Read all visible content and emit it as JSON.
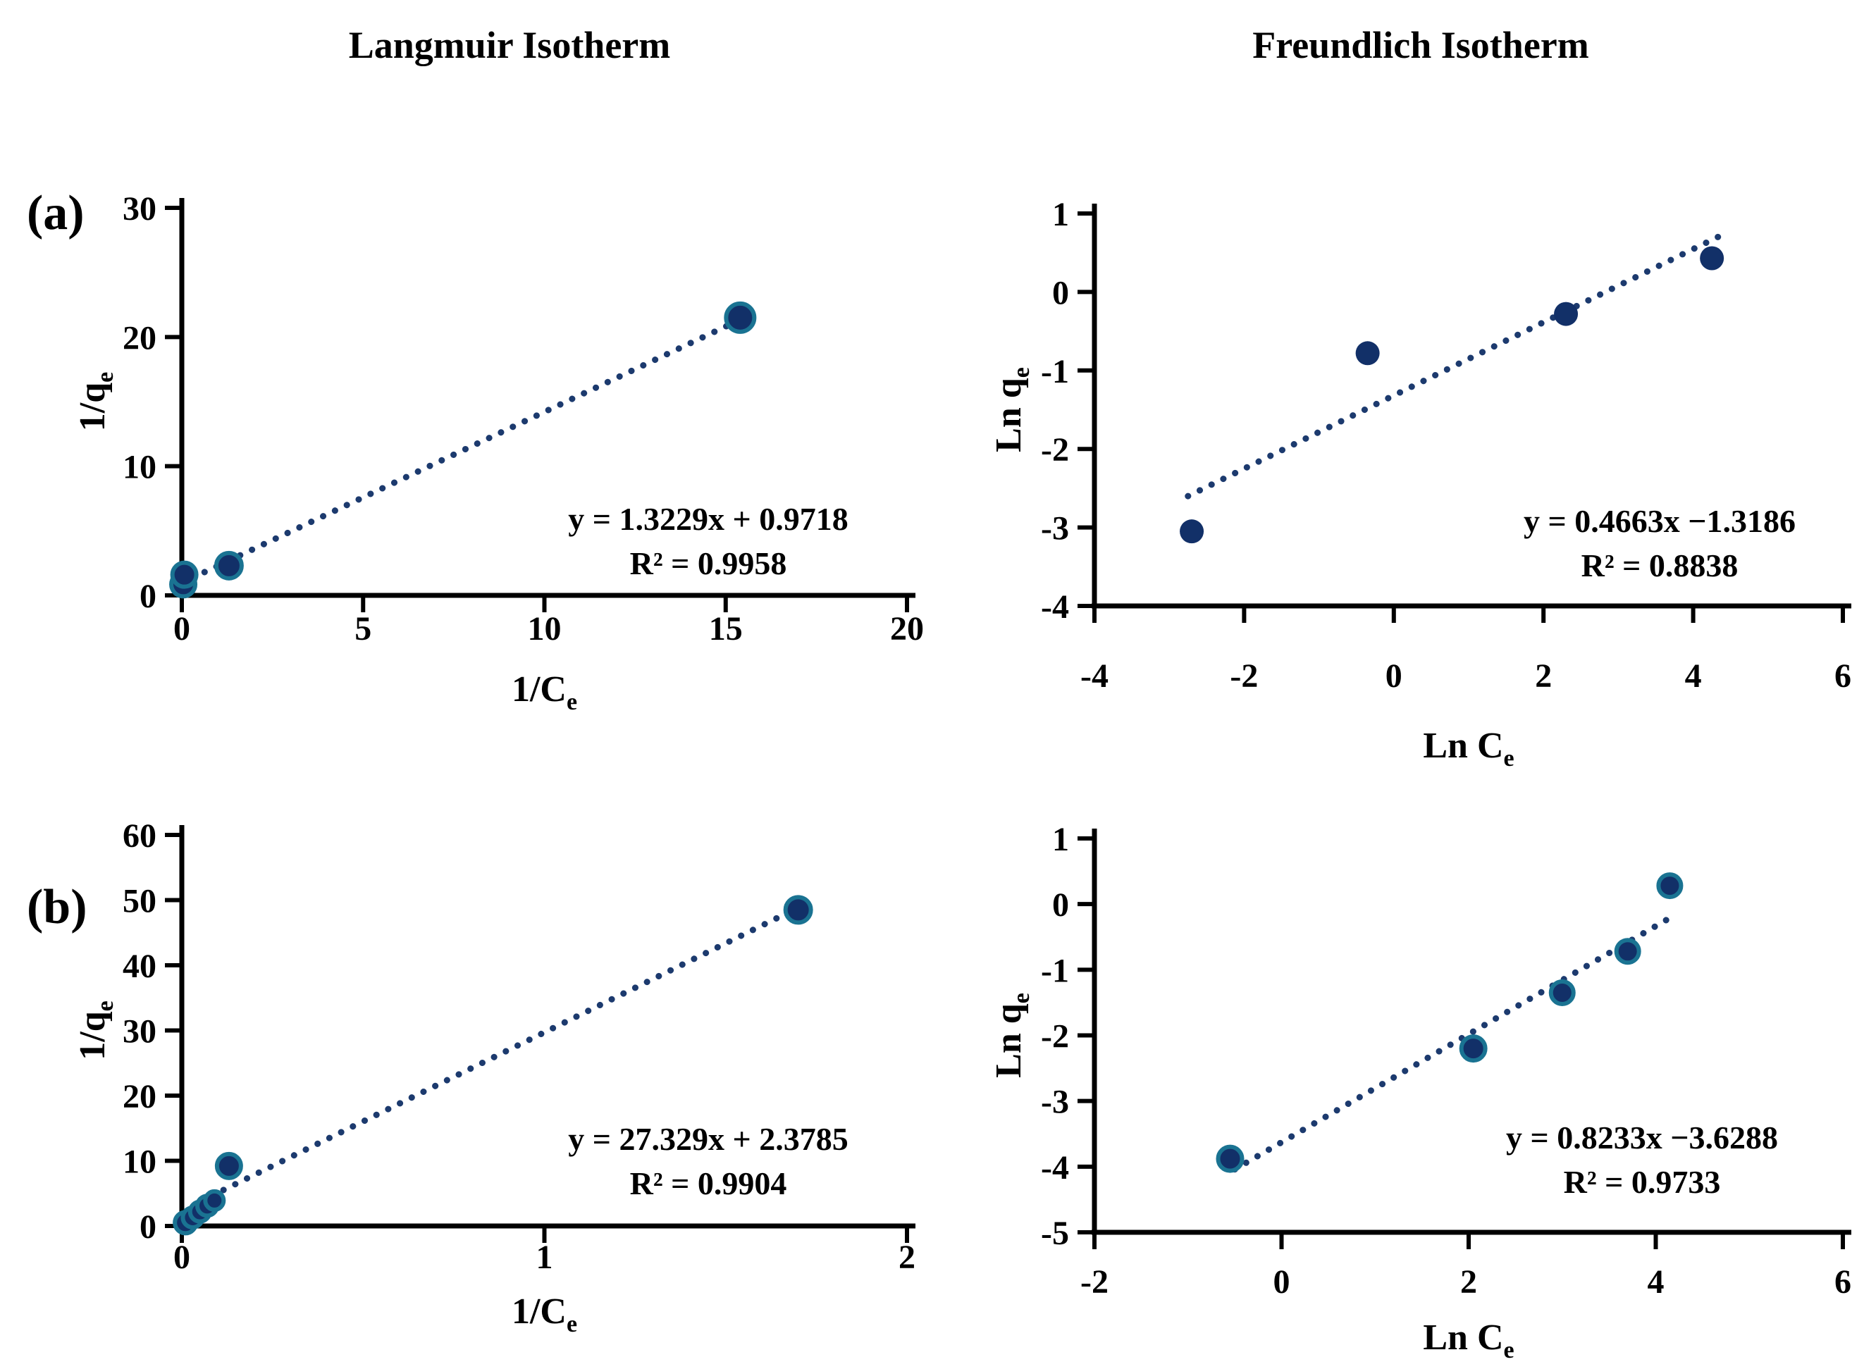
{
  "figure": {
    "column_titles": [
      "Langmuir Isotherm",
      "Freundlich Isotherm"
    ],
    "panel_labels": [
      "(a)",
      "(b)"
    ],
    "colors": {
      "axis": "#000000",
      "text": "#000000",
      "trendline": "#1c3a6e",
      "marker_fill": "#123068",
      "marker_ring": "#1a7392"
    }
  },
  "chart_data": [
    {
      "id": "a-langmuir",
      "type": "scatter",
      "panel": "(a)",
      "column": "Langmuir Isotherm",
      "xlabel_main": "1/C",
      "xlabel_sub": "e",
      "ylabel_main": "1/q",
      "ylabel_sub": "e",
      "xlim": [
        0,
        20
      ],
      "ylim": [
        0,
        30
      ],
      "xticks": [
        0,
        5,
        10,
        15,
        20
      ],
      "yticks": [
        0,
        10,
        20,
        30
      ],
      "points": [
        [
          0.04,
          0.85,
          17
        ],
        [
          0.07,
          1.6,
          17
        ],
        [
          1.3,
          2.3,
          18
        ],
        [
          15.4,
          21.5,
          20
        ]
      ],
      "trendline": {
        "slope": 1.3229,
        "intercept": 0.9718,
        "x_start": 0.3,
        "x_end": 15.5
      },
      "equation": "y = 1.3229x + 0.9718",
      "r_squared": "R² = 0.9958",
      "marker_ring": true,
      "legend": "none",
      "grid": false
    },
    {
      "id": "a-freundlich",
      "type": "scatter",
      "panel": "(a)",
      "column": "Freundlich Isotherm",
      "xlabel_main": "Ln C",
      "xlabel_sub": "e",
      "ylabel_main": "Ln q",
      "ylabel_sub": "e",
      "xlim": [
        -4,
        6
      ],
      "ylim": [
        -4,
        1
      ],
      "xticks": [
        -4,
        -2,
        0,
        2,
        4,
        6
      ],
      "yticks": [
        -4,
        -3,
        -2,
        -1,
        0,
        1
      ],
      "points": [
        [
          -2.7,
          -3.05,
          17
        ],
        [
          -0.35,
          -0.78,
          17
        ],
        [
          2.3,
          -0.28,
          17
        ],
        [
          4.25,
          0.43,
          17
        ]
      ],
      "trendline": {
        "slope": 0.4663,
        "intercept": -1.3186,
        "x_start": -2.75,
        "x_end": 4.47
      },
      "equation": "y = 0.4663x −1.3186",
      "r_squared": "R² = 0.8838",
      "marker_ring": false,
      "legend": "none",
      "grid": false
    },
    {
      "id": "b-langmuir",
      "type": "scatter",
      "panel": "(b)",
      "column": "Langmuir Isotherm",
      "xlabel_main": "1/C",
      "xlabel_sub": "e",
      "ylabel_main": "1/q",
      "ylabel_sub": "e",
      "xlim": [
        0,
        2
      ],
      "ylim": [
        0,
        60
      ],
      "xticks": [
        0,
        1,
        2
      ],
      "yticks": [
        0,
        10,
        20,
        30,
        40,
        50,
        60
      ],
      "points": [
        [
          0.01,
          0.5,
          15
        ],
        [
          0.03,
          1.3,
          14
        ],
        [
          0.05,
          2.2,
          14
        ],
        [
          0.07,
          3.1,
          14
        ],
        [
          0.09,
          3.9,
          13
        ],
        [
          0.13,
          9.2,
          17
        ],
        [
          1.7,
          48.5,
          18
        ]
      ],
      "trendline": {
        "slope": 27.329,
        "intercept": 2.3785,
        "x_start": 0.05,
        "x_end": 1.7
      },
      "equation": "y = 27.329x + 2.3785",
      "r_squared": "R² = 0.9904",
      "marker_ring": true,
      "legend": "none",
      "grid": false
    },
    {
      "id": "b-freundlich",
      "type": "scatter",
      "panel": "(b)",
      "column": "Freundlich Isotherm",
      "xlabel_main": "Ln C",
      "xlabel_sub": "e",
      "ylabel_main": "Ln q",
      "ylabel_sub": "e",
      "xlim": [
        -2,
        6
      ],
      "ylim": [
        -5,
        1
      ],
      "xticks": [
        -2,
        0,
        2,
        4,
        6
      ],
      "yticks": [
        -5,
        -4,
        -3,
        -2,
        -1,
        0,
        1
      ],
      "points": [
        [
          -0.55,
          -3.88,
          17
        ],
        [
          2.05,
          -2.2,
          17
        ],
        [
          3.0,
          -1.35,
          16
        ],
        [
          3.7,
          -0.72,
          16
        ],
        [
          4.15,
          0.28,
          16
        ]
      ],
      "trendline": {
        "slope": 0.8233,
        "intercept": -3.6288,
        "x_start": -0.5,
        "x_end": 4.22
      },
      "equation": "y = 0.8233x −3.6288",
      "r_squared": "R² = 0.9733",
      "marker_ring": true,
      "legend": "none",
      "grid": false
    }
  ]
}
